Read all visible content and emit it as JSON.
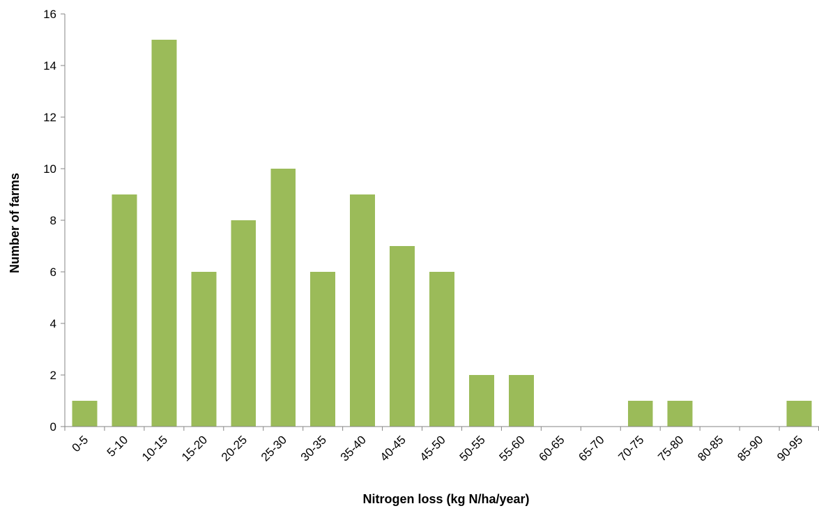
{
  "chart_data": {
    "type": "bar",
    "title": "",
    "xlabel": "Nitrogen loss (kg N/ha/year)",
    "ylabel": "Number of farms",
    "categories": [
      "0-5",
      "5-10",
      "10-15",
      "15-20",
      "20-25",
      "25-30",
      "30-35",
      "35-40",
      "40-45",
      "45-50",
      "50-55",
      "55-60",
      "60-65",
      "65-70",
      "70-75",
      "75-80",
      "80-85",
      "85-90",
      "90-95"
    ],
    "values": [
      1,
      9,
      15,
      6,
      8,
      10,
      6,
      9,
      7,
      6,
      2,
      2,
      0,
      0,
      1,
      1,
      0,
      0,
      1
    ],
    "ylim": [
      0,
      16
    ],
    "yticks": [
      0,
      2,
      4,
      6,
      8,
      10,
      12,
      14,
      16
    ],
    "grid": false,
    "legend": "none",
    "bar_color": "#9BBB59",
    "axis_color": "#868686"
  }
}
